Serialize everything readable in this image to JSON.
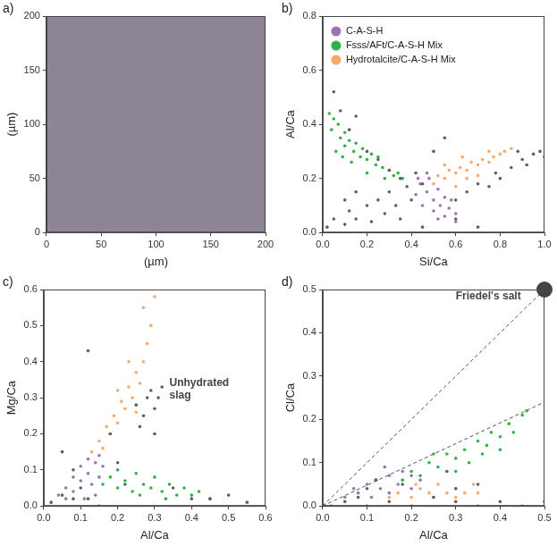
{
  "chart_data": [
    {
      "panel": "a)",
      "type": "image",
      "x_label": "(µm)",
      "y_label": "(µm)",
      "xlim": [
        0,
        200
      ],
      "ylim": [
        0,
        200
      ],
      "xticks": [
        0,
        50,
        100,
        150,
        200
      ],
      "yticks": [
        0,
        50,
        100,
        150,
        200
      ],
      "grid": false,
      "series": []
    },
    {
      "panel": "b)",
      "type": "scatter",
      "x_label": "Si/Ca",
      "y_label": "Al/Ca",
      "xlim": [
        0,
        1
      ],
      "ylim": [
        0,
        0.8
      ],
      "xticks": [
        {
          "value": 0,
          "label": "0.0"
        },
        0.2,
        0.4,
        0.6,
        0.8,
        {
          "value": 1,
          "label": "1.0"
        }
      ],
      "yticks": [
        {
          "value": 0,
          "label": "0.0"
        },
        0.2,
        0.4,
        0.6,
        0.8
      ],
      "grid": false,
      "legend": "upper left",
      "series": [
        {
          "color": "#5f5f5f",
          "marker": "dot",
          "x": [
            0.02,
            0.05,
            0.1,
            0.12,
            0.15,
            0.2,
            0.22,
            0.25,
            0.28,
            0.3,
            0.33,
            0.35,
            0.38,
            0.4,
            0.42,
            0.45,
            0.05,
            0.08,
            0.12,
            0.15,
            0.2,
            0.25,
            0.3,
            0.35,
            0.6,
            0.65,
            0.7,
            0.75,
            0.8,
            0.85,
            0.9,
            0.95,
            0.98,
            1.0,
            0.88,
            0.92,
            0.78,
            0.55,
            0.5,
            0.6,
            0.7,
            0.45,
            0.15,
            0.1
          ],
          "y": [
            0.02,
            0.05,
            0.03,
            0.08,
            0.05,
            0.1,
            0.04,
            0.12,
            0.07,
            0.15,
            0.1,
            0.05,
            0.17,
            0.12,
            0.22,
            0.18,
            0.52,
            0.45,
            0.38,
            0.43,
            0.3,
            0.27,
            0.23,
            0.2,
            0.12,
            0.15,
            0.18,
            0.17,
            0.2,
            0.24,
            0.27,
            0.29,
            0.3,
            0.28,
            0.3,
            0.25,
            0.22,
            0.35,
            0.3,
            0.05,
            0.02,
            0.02,
            0.15,
            0.12
          ]
        },
        {
          "name": "C-A-S-H",
          "color": "#9b72b0",
          "marker": "dot",
          "x": [
            0.42,
            0.44,
            0.45,
            0.47,
            0.48,
            0.5,
            0.5,
            0.52,
            0.53,
            0.55,
            0.55,
            0.57,
            0.58,
            0.6,
            0.6,
            0.47,
            0.43,
            0.52
          ],
          "y": [
            0.14,
            0.18,
            0.1,
            0.15,
            0.2,
            0.12,
            0.08,
            0.16,
            0.1,
            0.13,
            0.06,
            0.09,
            0.12,
            0.07,
            0.04,
            0.22,
            0.2,
            0.05
          ]
        },
        {
          "name": "Fsss/AFt/C-A-S-H Mix",
          "color": "#2fb344",
          "marker": "dot",
          "x": [
            0.03,
            0.05,
            0.04,
            0.07,
            0.08,
            0.1,
            0.1,
            0.12,
            0.14,
            0.15,
            0.17,
            0.18,
            0.2,
            0.22,
            0.24,
            0.25,
            0.27,
            0.3,
            0.32,
            0.34,
            0.06,
            0.09,
            0.13,
            0.2,
            0.28,
            0.36
          ],
          "y": [
            0.44,
            0.42,
            0.38,
            0.4,
            0.35,
            0.37,
            0.32,
            0.34,
            0.3,
            0.33,
            0.28,
            0.31,
            0.27,
            0.29,
            0.25,
            0.28,
            0.24,
            0.23,
            0.21,
            0.22,
            0.3,
            0.28,
            0.26,
            0.22,
            0.2,
            0.2
          ]
        },
        {
          "name": "Hydrotalcite/C-A-S-H Mix",
          "color": "#f8a86a",
          "marker": "dot",
          "x": [
            0.5,
            0.52,
            0.55,
            0.57,
            0.6,
            0.62,
            0.65,
            0.67,
            0.7,
            0.72,
            0.75,
            0.77,
            0.8,
            0.82,
            0.85,
            0.6,
            0.65,
            0.7,
            0.55,
            0.75,
            0.63
          ],
          "y": [
            0.18,
            0.21,
            0.2,
            0.23,
            0.22,
            0.24,
            0.23,
            0.26,
            0.25,
            0.27,
            0.26,
            0.28,
            0.29,
            0.3,
            0.31,
            0.17,
            0.2,
            0.21,
            0.25,
            0.3,
            0.28
          ]
        }
      ]
    },
    {
      "panel": "c)",
      "type": "scatter",
      "x_label": "Al/Ca",
      "y_label": "Mg/Ca",
      "xlim": [
        0,
        0.6
      ],
      "ylim": [
        0,
        0.6
      ],
      "xticks": [
        {
          "value": 0,
          "label": "0.0"
        },
        0.1,
        0.2,
        0.3,
        0.4,
        0.5,
        0.6
      ],
      "yticks": [
        {
          "value": 0,
          "label": "0.0"
        },
        0.1,
        0.2,
        0.3,
        0.4,
        0.5,
        0.6
      ],
      "grid": false,
      "annotations": [
        {
          "text": "Unhydrated slag",
          "x": 0.34,
          "y": 0.34
        }
      ],
      "series": [
        {
          "color": "#5f5f5f",
          "marker": "dot",
          "x": [
            0.02,
            0.05,
            0.08,
            0.1,
            0.12,
            0.15,
            0.25,
            0.27,
            0.28,
            0.3,
            0.29,
            0.31,
            0.26,
            0.32,
            0.12,
            0.18,
            0.2,
            0.35,
            0.4,
            0.45,
            0.5,
            0.55,
            0.05,
            0.08,
            0.22,
            0.3
          ],
          "y": [
            0.01,
            0.03,
            0.02,
            0.05,
            0.02,
            0.0,
            0.28,
            0.25,
            0.3,
            0.27,
            0.32,
            0.3,
            0.22,
            0.33,
            0.43,
            0.2,
            0.12,
            0.05,
            0.02,
            0.02,
            0.03,
            0.01,
            0.15,
            0.1,
            0.06,
            0.2
          ]
        },
        {
          "color": "#9b72b0",
          "marker": "dot",
          "x": [
            0.04,
            0.06,
            0.08,
            0.08,
            0.1,
            0.1,
            0.12,
            0.12,
            0.13,
            0.14,
            0.15,
            0.15,
            0.16,
            0.11,
            0.14,
            0.06
          ],
          "y": [
            0.03,
            0.05,
            0.04,
            0.08,
            0.07,
            0.11,
            0.09,
            0.13,
            0.06,
            0.12,
            0.14,
            0.08,
            0.11,
            0.02,
            0.03,
            0.02
          ]
        },
        {
          "color": "#f8a86a",
          "marker": "dot",
          "x": [
            0.13,
            0.15,
            0.16,
            0.17,
            0.18,
            0.19,
            0.2,
            0.21,
            0.22,
            0.23,
            0.24,
            0.25,
            0.26,
            0.27,
            0.28,
            0.29,
            0.27,
            0.23,
            0.2,
            0.25,
            0.3
          ],
          "y": [
            0.15,
            0.18,
            0.16,
            0.22,
            0.2,
            0.25,
            0.23,
            0.29,
            0.27,
            0.33,
            0.3,
            0.37,
            0.34,
            0.4,
            0.45,
            0.5,
            0.55,
            0.4,
            0.32,
            0.26,
            0.58
          ]
        },
        {
          "color": "#2fb344",
          "marker": "dot",
          "x": [
            0.16,
            0.18,
            0.2,
            0.22,
            0.24,
            0.25,
            0.27,
            0.29,
            0.3,
            0.32,
            0.34,
            0.36,
            0.38,
            0.4,
            0.42,
            0.45,
            0.2,
            0.26,
            0.33
          ],
          "y": [
            0.06,
            0.08,
            0.05,
            0.07,
            0.04,
            0.09,
            0.06,
            0.05,
            0.08,
            0.04,
            0.06,
            0.03,
            0.05,
            0.03,
            0.04,
            0.02,
            0.1,
            0.03,
            0.02
          ]
        }
      ]
    },
    {
      "panel": "d)",
      "type": "scatter",
      "x_label": "Al/Ca",
      "y_label": "Cl/Ca",
      "xlim": [
        0,
        0.5
      ],
      "ylim": [
        0,
        0.5
      ],
      "xticks": [
        {
          "value": 0,
          "label": "0.0"
        },
        0.1,
        0.2,
        0.3,
        0.4,
        0.5
      ],
      "yticks": [
        {
          "value": 0,
          "label": "0.0"
        },
        0.1,
        0.2,
        0.3,
        0.4,
        0.5
      ],
      "grid": false,
      "annotations": [
        {
          "text": "Friedel's salt",
          "x": 0.3,
          "y": 0.485
        }
      ],
      "series": [
        {
          "color": "#5f5f5f",
          "marker": "dot",
          "x": [
            0.02,
            0.05,
            0.1,
            0.15,
            0.2,
            0.25,
            0.3,
            0.35,
            0.4,
            0.45,
            0.5,
            0.1,
            0.12,
            0.28,
            0.3,
            0.35,
            0.08,
            0.18
          ],
          "y": [
            0.0,
            0.01,
            0.0,
            0.01,
            0.0,
            0.02,
            0.01,
            0.0,
            0.01,
            0.0,
            0.01,
            0.04,
            0.06,
            0.08,
            0.04,
            0.05,
            0.02,
            0.05
          ]
        },
        {
          "color": "#9b72b0",
          "marker": "dot",
          "x": [
            0.05,
            0.07,
            0.08,
            0.1,
            0.11,
            0.12,
            0.13,
            0.15,
            0.15,
            0.17,
            0.18,
            0.2,
            0.2,
            0.22,
            0.14
          ],
          "y": [
            0.02,
            0.04,
            0.03,
            0.05,
            0.02,
            0.06,
            0.04,
            0.07,
            0.03,
            0.05,
            0.08,
            0.04,
            0.07,
            0.06,
            0.09
          ]
        },
        {
          "color": "#f8a86a",
          "marker": "dot",
          "x": [
            0.15,
            0.17,
            0.2,
            0.22,
            0.24,
            0.26,
            0.28,
            0.3,
            0.32,
            0.34,
            0.25,
            0.3,
            0.21,
            0.35
          ],
          "y": [
            0.02,
            0.03,
            0.02,
            0.04,
            0.03,
            0.05,
            0.03,
            0.04,
            0.03,
            0.05,
            0.02,
            0.02,
            0.05,
            0.03
          ]
        },
        {
          "color": "#2fb344",
          "marker": "dot",
          "x": [
            0.18,
            0.2,
            0.22,
            0.24,
            0.26,
            0.28,
            0.3,
            0.32,
            0.33,
            0.35,
            0.37,
            0.38,
            0.4,
            0.42,
            0.43,
            0.45,
            0.46,
            0.36,
            0.3,
            0.25,
            0.4
          ],
          "y": [
            0.06,
            0.08,
            0.07,
            0.1,
            0.09,
            0.12,
            0.11,
            0.13,
            0.1,
            0.15,
            0.14,
            0.17,
            0.16,
            0.19,
            0.17,
            0.21,
            0.22,
            0.12,
            0.08,
            0.12,
            0.13
          ]
        },
        {
          "type": "line",
          "line_style": "dashed",
          "color": "#555555",
          "x": [
            0,
            0.5
          ],
          "y": [
            0,
            0.5
          ]
        },
        {
          "type": "line",
          "line_style": "dashed",
          "color": "#555555",
          "x": [
            0,
            0.5
          ],
          "y": [
            0,
            0.24
          ]
        },
        {
          "color": "#444444",
          "marker": "big_dot",
          "x": [
            0.5
          ],
          "y": [
            0.5
          ]
        }
      ]
    }
  ]
}
